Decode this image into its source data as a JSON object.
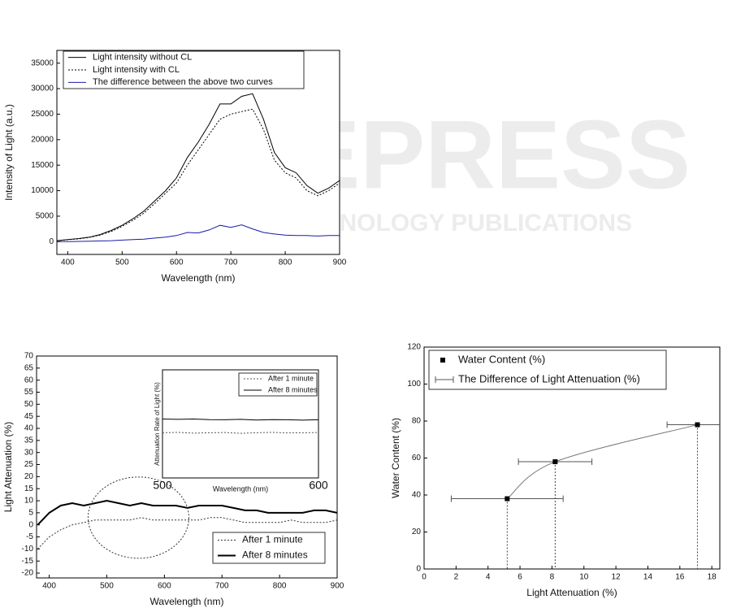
{
  "watermark": {
    "title": "SCITEPRESS",
    "subtitle": "SCIENCE AND TECHNOLOGY PUBLICATIONS"
  },
  "chart_data": [
    {
      "type": "line",
      "xlabel": "Wavelength (nm)",
      "ylabel": "Intensity of Light (a.u.)",
      "x": [
        380,
        400,
        420,
        440,
        460,
        480,
        500,
        520,
        540,
        560,
        580,
        600,
        620,
        640,
        660,
        680,
        700,
        720,
        740,
        760,
        780,
        800,
        820,
        840,
        860,
        880,
        900
      ],
      "series": [
        {
          "name": "Light intensity without CL",
          "color": "#000000",
          "line_style": "solid",
          "line_width": 1,
          "values": [
            200,
            400,
            600,
            900,
            1400,
            2200,
            3200,
            4500,
            6000,
            8000,
            10000,
            12500,
            16500,
            19500,
            23000,
            27000,
            27000,
            28500,
            29000,
            24000,
            17500,
            14500,
            13500,
            11000,
            9500,
            10500,
            12000
          ]
        },
        {
          "name": "Light intensity with CL",
          "color": "#000000",
          "line_style": "dotted",
          "line_width": 1,
          "values": [
            200,
            380,
            550,
            850,
            1300,
            2000,
            3000,
            4200,
            5600,
            7500,
            9500,
            11500,
            15000,
            18000,
            21000,
            24000,
            25000,
            25500,
            26000,
            22000,
            16000,
            13500,
            12500,
            10000,
            9000,
            10000,
            11500
          ]
        },
        {
          "name": "The difference between the above two curves",
          "color": "#1a1aa6",
          "line_style": "solid",
          "line_width": 1,
          "values": [
            0,
            20,
            50,
            100,
            150,
            200,
            300,
            400,
            500,
            700,
            900,
            1200,
            1800,
            1700,
            2300,
            3200,
            2800,
            3300,
            2500,
            1800,
            1500,
            1300,
            1200,
            1200,
            1100,
            1200,
            1200
          ]
        }
      ],
      "xlim": [
        380,
        900
      ],
      "xticks": [
        400,
        500,
        600,
        700,
        800,
        900
      ],
      "ylim": [
        -2500,
        37500
      ],
      "yticks": [
        0,
        5000,
        10000,
        15000,
        20000,
        25000,
        30000,
        35000
      ],
      "legend": "upper left"
    },
    {
      "type": "line",
      "xlabel": "Wavelength (nm)",
      "ylabel": "Light Attenuation (%)",
      "x": [
        380,
        400,
        420,
        440,
        460,
        480,
        500,
        520,
        540,
        560,
        580,
        600,
        620,
        640,
        660,
        680,
        700,
        720,
        740,
        760,
        780,
        800,
        820,
        840,
        860,
        880,
        900
      ],
      "series": [
        {
          "name": "After 1 minute",
          "color": "#333333",
          "line_style": "dotted",
          "line_width": 1,
          "values": [
            -10,
            -5,
            -2,
            0,
            1,
            2,
            2,
            2,
            2,
            3,
            2,
            2,
            2,
            2,
            2,
            3,
            3,
            2,
            1,
            1,
            1,
            1,
            2,
            1,
            1,
            1,
            2
          ]
        },
        {
          "name": "After 8 minutes",
          "color": "#000000",
          "line_style": "solid",
          "line_width": 2,
          "values": [
            0,
            5,
            8,
            9,
            8,
            9,
            10,
            9,
            8,
            9,
            8,
            8,
            8,
            7,
            8,
            8,
            8,
            7,
            6,
            6,
            5,
            5,
            5,
            5,
            6,
            6,
            5
          ]
        }
      ],
      "xlim": [
        378,
        900
      ],
      "xticks": [
        400,
        500,
        600,
        700,
        800,
        900
      ],
      "ylim": [
        -22,
        70
      ],
      "yticks": [
        -20,
        -15,
        -10,
        -5,
        0,
        5,
        10,
        15,
        20,
        25,
        30,
        35,
        40,
        45,
        50,
        55,
        60,
        65,
        70
      ],
      "legend": "lower right"
    },
    {
      "type": "line",
      "xlabel": "Wavelength (nm)",
      "ylabel": "Attenuation Rate of Light (%)",
      "x": [
        500,
        510,
        520,
        530,
        540,
        550,
        560,
        570,
        580,
        590,
        600
      ],
      "series": [
        {
          "name": "After 1 minute",
          "color": "#555555",
          "line_style": "dotted",
          "line_width": 1,
          "values": [
            3,
            3.2,
            2.8,
            3,
            3.1,
            2.7,
            3,
            3.2,
            2.9,
            3,
            3.1
          ]
        },
        {
          "name": "After 8 minutes",
          "color": "#000000",
          "line_style": "solid",
          "line_width": 1,
          "values": [
            10,
            9.8,
            10,
            9.7,
            9.6,
            9.8,
            9.5,
            9.7,
            9.6,
            9.4,
            9.6
          ]
        }
      ],
      "xlim": [
        500,
        600
      ],
      "xticks": [
        500,
        600
      ],
      "ylim": [
        -20,
        35
      ],
      "legend": "upper right"
    },
    {
      "type": "scatter",
      "xlabel": "Light Attenuation (%)",
      "ylabel": "Water Content (%)",
      "series": [
        {
          "name": "Water Content (%)",
          "error_name": "The Difference of Light Attenuation (%)",
          "color": "#000000",
          "x": [
            5.2,
            8.2,
            17.1
          ],
          "values": [
            38,
            58,
            78
          ],
          "xerr": [
            3.5,
            2.3,
            1.9
          ]
        }
      ],
      "xlim": [
        0,
        18.5
      ],
      "xticks": [
        0,
        2,
        4,
        6,
        8,
        10,
        12,
        14,
        16,
        18
      ],
      "ylim": [
        0,
        120
      ],
      "yticks": [
        0,
        20,
        40,
        60,
        80,
        100,
        120
      ],
      "legend": "upper left"
    }
  ]
}
